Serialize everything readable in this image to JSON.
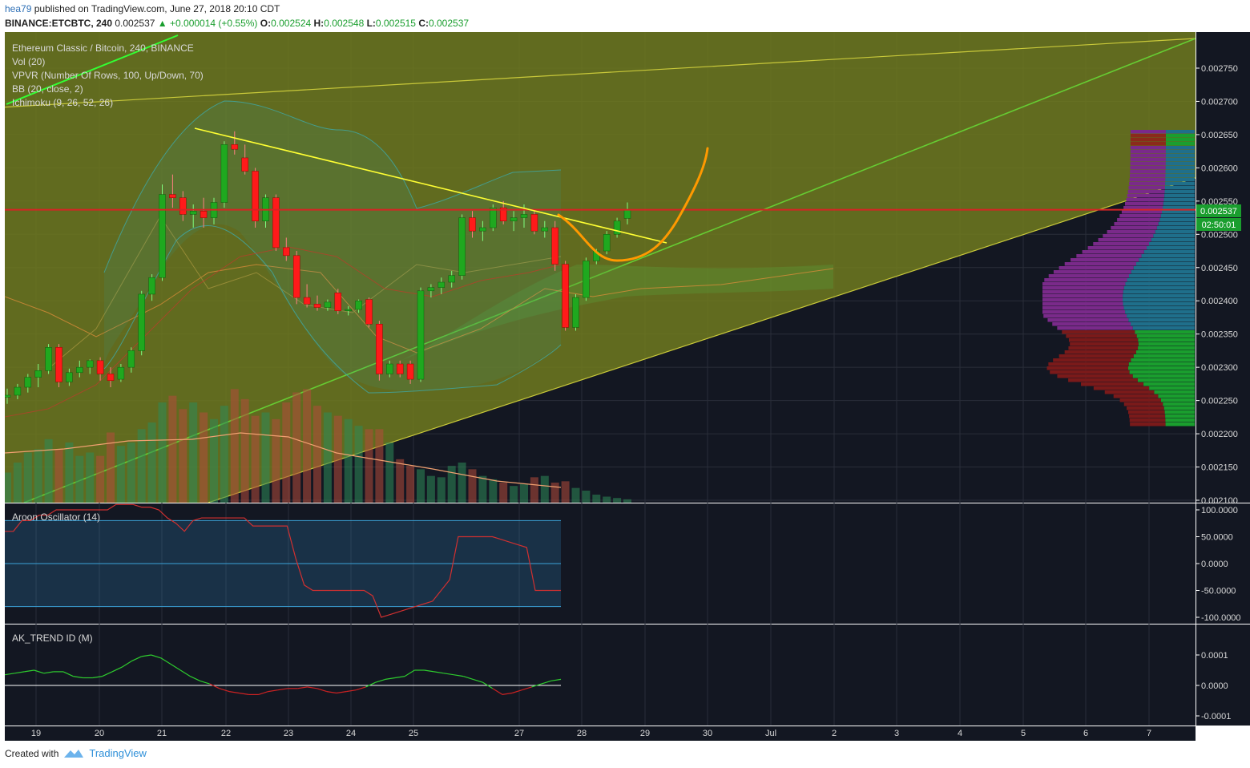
{
  "header": {
    "author": "hea79",
    "published": "published on TradingView.com, June 27, 2018 20:10 CDT",
    "symbol": "BINANCE:ETCBTC, 240",
    "last": "0.002537",
    "change": "+0.000014 (+0.55%)",
    "o_label": "O:",
    "o": "0.002524",
    "h_label": "H:",
    "h": "0.002548",
    "l_label": "L:",
    "l": "0.002515",
    "c_label": "C:",
    "c": "0.002537"
  },
  "legend": [
    "Ethereum Classic / Bitcoin, 240, BINANCE",
    "Vol (20)",
    "VPVR (Number Of Rows, 100, Up/Down, 70)",
    "BB (20, close, 2)",
    "Ichimoku (9, 26, 52, 26)"
  ],
  "price_axis": {
    "ticks": [
      "0.002750",
      "0.002700",
      "0.002650",
      "0.002600",
      "0.002550",
      "0.002500",
      "0.002450",
      "0.002400",
      "0.002350",
      "0.002300",
      "0.002250",
      "0.002200",
      "0.002150",
      "0.002100"
    ],
    "current_price": "0.002537",
    "countdown": "02:50:01"
  },
  "aroon": {
    "title": "Aroon Oscillator (14)",
    "ticks": [
      "100.0000",
      "50.0000",
      "0.0000",
      "-50.0000",
      "-100.0000"
    ]
  },
  "ak_trend": {
    "title": "AK_TREND ID (M)",
    "ticks": [
      "0.0001",
      "0.0000",
      "-0.0001"
    ]
  },
  "time_axis": [
    "19",
    "20",
    "21",
    "22",
    "23",
    "24",
    "25",
    "27",
    "28",
    "29",
    "30",
    "Jul",
    "2",
    "3",
    "4",
    "5",
    "6",
    "7"
  ],
  "footer": {
    "created_with": "Created with",
    "brand": "TradingView"
  },
  "colors": {
    "up": "#1fa81f",
    "down": "#ff1a1a",
    "background": "#131722",
    "channel": "#707a1e",
    "current_line": "#d62424",
    "trend_green": "#66cc33",
    "trend_yellow": "#ffff33",
    "projection": "#ff9900"
  },
  "chart_data": {
    "type": "candlestick",
    "pair": "ETC/BTC",
    "candles": [
      {
        "o": 0.002255,
        "h": 0.002268,
        "l": 0.002245,
        "c": 0.002258
      },
      {
        "o": 0.002258,
        "h": 0.002275,
        "l": 0.002252,
        "c": 0.00227
      },
      {
        "o": 0.00227,
        "h": 0.00229,
        "l": 0.002262,
        "c": 0.002285
      },
      {
        "o": 0.002285,
        "h": 0.002305,
        "l": 0.00227,
        "c": 0.002295
      },
      {
        "o": 0.002295,
        "h": 0.002335,
        "l": 0.00229,
        "c": 0.00233
      },
      {
        "o": 0.00233,
        "h": 0.002335,
        "l": 0.00227,
        "c": 0.002278
      },
      {
        "o": 0.002278,
        "h": 0.002298,
        "l": 0.002272,
        "c": 0.002292
      },
      {
        "o": 0.002292,
        "h": 0.00231,
        "l": 0.002285,
        "c": 0.0023
      },
      {
        "o": 0.0023,
        "h": 0.002312,
        "l": 0.00229,
        "c": 0.00231
      },
      {
        "o": 0.00231,
        "h": 0.002315,
        "l": 0.00228,
        "c": 0.00229
      },
      {
        "o": 0.00229,
        "h": 0.0023,
        "l": 0.00227,
        "c": 0.00228
      },
      {
        "o": 0.002282,
        "h": 0.002305,
        "l": 0.002278,
        "c": 0.0023
      },
      {
        "o": 0.0023,
        "h": 0.00233,
        "l": 0.002292,
        "c": 0.002325
      },
      {
        "o": 0.002325,
        "h": 0.002415,
        "l": 0.002318,
        "c": 0.00241
      },
      {
        "o": 0.00241,
        "h": 0.00244,
        "l": 0.0024,
        "c": 0.002435
      },
      {
        "o": 0.002435,
        "h": 0.002575,
        "l": 0.00243,
        "c": 0.00256
      },
      {
        "o": 0.00256,
        "h": 0.00259,
        "l": 0.00254,
        "c": 0.002555
      },
      {
        "o": 0.002555,
        "h": 0.002565,
        "l": 0.00252,
        "c": 0.00253
      },
      {
        "o": 0.00253,
        "h": 0.002545,
        "l": 0.00251,
        "c": 0.002535
      },
      {
        "o": 0.002535,
        "h": 0.002555,
        "l": 0.00251,
        "c": 0.002525
      },
      {
        "o": 0.002525,
        "h": 0.002555,
        "l": 0.002515,
        "c": 0.002548
      },
      {
        "o": 0.002548,
        "h": 0.00264,
        "l": 0.00254,
        "c": 0.002635
      },
      {
        "o": 0.002635,
        "h": 0.002655,
        "l": 0.00262,
        "c": 0.002628
      },
      {
        "o": 0.002615,
        "h": 0.002635,
        "l": 0.00259,
        "c": 0.002595
      },
      {
        "o": 0.002595,
        "h": 0.0026,
        "l": 0.00251,
        "c": 0.00252
      },
      {
        "o": 0.00252,
        "h": 0.00256,
        "l": 0.00251,
        "c": 0.002555
      },
      {
        "o": 0.002555,
        "h": 0.00256,
        "l": 0.002475,
        "c": 0.00248
      },
      {
        "o": 0.00248,
        "h": 0.002495,
        "l": 0.00246,
        "c": 0.002468
      },
      {
        "o": 0.002468,
        "h": 0.002475,
        "l": 0.002395,
        "c": 0.002405
      },
      {
        "o": 0.002405,
        "h": 0.002425,
        "l": 0.00239,
        "c": 0.002395
      },
      {
        "o": 0.002395,
        "h": 0.002408,
        "l": 0.002385,
        "c": 0.00239
      },
      {
        "o": 0.00239,
        "h": 0.002402,
        "l": 0.002385,
        "c": 0.002398
      },
      {
        "o": 0.002412,
        "h": 0.002418,
        "l": 0.00238,
        "c": 0.002385
      },
      {
        "o": 0.002385,
        "h": 0.002392,
        "l": 0.002378,
        "c": 0.002387
      },
      {
        "o": 0.002387,
        "h": 0.002402,
        "l": 0.002382,
        "c": 0.0024
      },
      {
        "o": 0.002402,
        "h": 0.002405,
        "l": 0.00236,
        "c": 0.002365
      },
      {
        "o": 0.002365,
        "h": 0.00237,
        "l": 0.00228,
        "c": 0.00229
      },
      {
        "o": 0.00229,
        "h": 0.00231,
        "l": 0.002285,
        "c": 0.002305
      },
      {
        "o": 0.002305,
        "h": 0.00231,
        "l": 0.002285,
        "c": 0.00229
      },
      {
        "o": 0.002305,
        "h": 0.00231,
        "l": 0.002275,
        "c": 0.002282
      },
      {
        "o": 0.002282,
        "h": 0.00242,
        "l": 0.002278,
        "c": 0.002415
      },
      {
        "o": 0.002415,
        "h": 0.002425,
        "l": 0.002405,
        "c": 0.00242
      },
      {
        "o": 0.00242,
        "h": 0.002435,
        "l": 0.00241,
        "c": 0.002428
      },
      {
        "o": 0.002428,
        "h": 0.002445,
        "l": 0.00242,
        "c": 0.002438
      },
      {
        "o": 0.002438,
        "h": 0.00253,
        "l": 0.002432,
        "c": 0.002525
      },
      {
        "o": 0.002525,
        "h": 0.002535,
        "l": 0.002495,
        "c": 0.002505
      },
      {
        "o": 0.002505,
        "h": 0.00252,
        "l": 0.00249,
        "c": 0.00251
      },
      {
        "o": 0.00251,
        "h": 0.002545,
        "l": 0.002505,
        "c": 0.00254
      },
      {
        "o": 0.00254,
        "h": 0.00255,
        "l": 0.002515,
        "c": 0.00252
      },
      {
        "o": 0.00252,
        "h": 0.002535,
        "l": 0.002505,
        "c": 0.002525
      },
      {
        "o": 0.002525,
        "h": 0.002545,
        "l": 0.00251,
        "c": 0.00253
      },
      {
        "o": 0.00253,
        "h": 0.002535,
        "l": 0.0025,
        "c": 0.002505
      },
      {
        "o": 0.002505,
        "h": 0.00252,
        "l": 0.002495,
        "c": 0.00251
      },
      {
        "o": 0.00251,
        "h": 0.00252,
        "l": 0.002445,
        "c": 0.002455
      },
      {
        "o": 0.002455,
        "h": 0.00246,
        "l": 0.002355,
        "c": 0.00236
      },
      {
        "o": 0.00236,
        "h": 0.00241,
        "l": 0.002355,
        "c": 0.002405
      },
      {
        "o": 0.002405,
        "h": 0.002465,
        "l": 0.0024,
        "c": 0.00246
      },
      {
        "o": 0.00246,
        "h": 0.002478,
        "l": 0.002455,
        "c": 0.002475
      },
      {
        "o": 0.002475,
        "h": 0.002505,
        "l": 0.00247,
        "c": 0.0025
      },
      {
        "o": 0.0025,
        "h": 0.002525,
        "l": 0.002495,
        "c": 0.00252
      },
      {
        "o": 0.002524,
        "h": 0.002548,
        "l": 0.002515,
        "c": 0.002537
      }
    ],
    "volume": [
      45,
      60,
      75,
      80,
      95,
      80,
      90,
      70,
      75,
      70,
      105,
      85,
      90,
      110,
      120,
      150,
      160,
      140,
      150,
      135,
      125,
      145,
      170,
      155,
      130,
      135,
      125,
      150,
      165,
      170,
      145,
      135,
      130,
      125,
      115,
      110,
      110,
      90,
      65,
      55,
      50,
      40,
      38,
      55,
      60,
      50,
      40,
      35,
      30,
      25,
      28,
      38,
      40,
      30,
      32,
      22,
      18,
      12,
      9,
      7,
      5
    ],
    "current_price": 0.002537,
    "ylim": [
      0.0021,
      0.00278
    ],
    "projection": [
      {
        "x": 27.5,
        "y": 0.00252
      },
      {
        "x": 28.5,
        "y": 0.002462
      },
      {
        "x": 29.3,
        "y": 0.002495
      },
      {
        "x": 30.0,
        "y": 0.00263
      }
    ],
    "resistance_line": [
      {
        "x": 21.5,
        "y": 0.002658
      },
      {
        "x": 29.3,
        "y": 0.002488
      }
    ],
    "channel_upper_line": [
      {
        "x": 18.8,
        "y": 0.002675
      },
      {
        "x": 7.7,
        "y": 0.002795
      }
    ],
    "aroon": {
      "ylim": [
        -110,
        110
      ],
      "values": [
        60,
        60,
        80,
        80,
        90,
        90,
        100,
        100,
        100,
        100,
        100,
        100,
        100,
        110,
        110,
        110,
        105,
        105,
        100,
        85,
        75,
        60,
        80,
        85,
        85,
        85,
        85,
        85,
        85,
        70,
        70,
        70,
        70,
        70,
        10,
        -40,
        -50,
        -50,
        -50,
        -50,
        -50,
        -50,
        -50,
        -60,
        -100,
        -95,
        -90,
        -85,
        -80,
        -75,
        -70,
        -50,
        -30,
        50,
        50,
        50,
        50,
        50,
        45,
        40,
        35,
        30,
        -50,
        -50,
        -50,
        -50
      ]
    },
    "ak_trend": {
      "ylim": [
        -0.00011,
        0.00011
      ],
      "values": [
        3.5e-05,
        4e-05,
        4.5e-05,
        5e-05,
        4e-05,
        4.5e-05,
        4.5e-05,
        3e-05,
        2.5e-05,
        2.5e-05,
        3e-05,
        4.5e-05,
        6e-05,
        8e-05,
        9.5e-05,
        0.0001,
        9e-05,
        7e-05,
        5e-05,
        3e-05,
        1.5e-05,
        5e-06,
        -1e-05,
        -2e-05,
        -2.5e-05,
        -3e-05,
        -3e-05,
        -2e-05,
        -1.5e-05,
        -1e-05,
        -1e-05,
        -5e-06,
        -1e-05,
        -2e-05,
        -2.5e-05,
        -2e-05,
        -1.5e-05,
        -5e-06,
        1e-05,
        2e-05,
        2.5e-05,
        3e-05,
        5e-05,
        5e-05,
        4.5e-05,
        4e-05,
        3.5e-05,
        3e-05,
        2e-05,
        1e-05,
        -1e-05,
        -3e-05,
        -2.5e-05,
        -1.5e-05,
        -5e-06,
        5e-06,
        1.5e-05,
        2e-05
      ]
    }
  }
}
